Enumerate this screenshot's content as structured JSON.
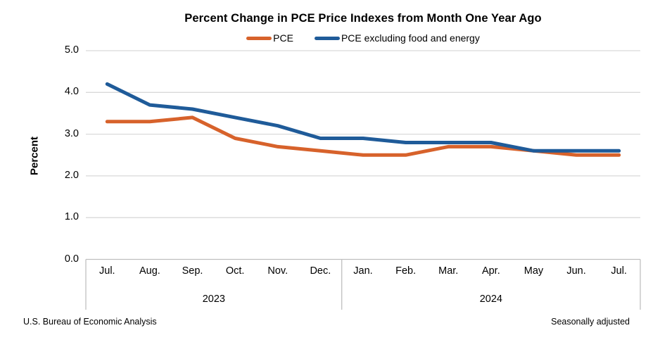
{
  "title": "Percent Change in PCE Price Indexes from Month One Year Ago",
  "legend": [
    {
      "label": "PCE",
      "color": "#D7622B"
    },
    {
      "label": "PCE excluding food and energy",
      "color": "#1F5B99"
    }
  ],
  "y_axis": {
    "label": "Percent",
    "ticks": [
      "5.0",
      "4.0",
      "3.0",
      "2.0",
      "1.0",
      "0.0"
    ]
  },
  "footer": {
    "source": "U.S. Bureau of Economic Analysis",
    "note": "Seasonally adjusted"
  },
  "colors": {
    "gridline": "#D9D9D9",
    "axis_table_line": "#BFBFBF"
  },
  "chart_data": {
    "type": "line",
    "categories": [
      "Jul.",
      "Aug.",
      "Sep.",
      "Oct.",
      "Nov.",
      "Dec.",
      "Jan.",
      "Feb.",
      "Mar.",
      "Apr.",
      "May",
      "Jun.",
      "Jul."
    ],
    "year_groups": [
      {
        "label": "2023",
        "span": 6
      },
      {
        "label": "2024",
        "span": 7
      }
    ],
    "series": [
      {
        "name": "PCE",
        "color": "#D7622B",
        "values": [
          3.3,
          3.3,
          3.4,
          2.9,
          2.7,
          2.6,
          2.5,
          2.5,
          2.7,
          2.7,
          2.6,
          2.5,
          2.5
        ]
      },
      {
        "name": "PCE excluding food and energy",
        "color": "#1F5B99",
        "values": [
          4.2,
          3.7,
          3.6,
          3.4,
          3.2,
          2.9,
          2.9,
          2.8,
          2.8,
          2.8,
          2.6,
          2.6,
          2.6
        ]
      }
    ],
    "title": "Percent Change in PCE Price Indexes from Month One Year Ago",
    "xlabel": "",
    "ylabel": "Percent",
    "ylim": [
      0,
      5
    ],
    "ytick_step": 1,
    "grid": true,
    "legend_position": "top",
    "note": "Seasonally adjusted"
  }
}
